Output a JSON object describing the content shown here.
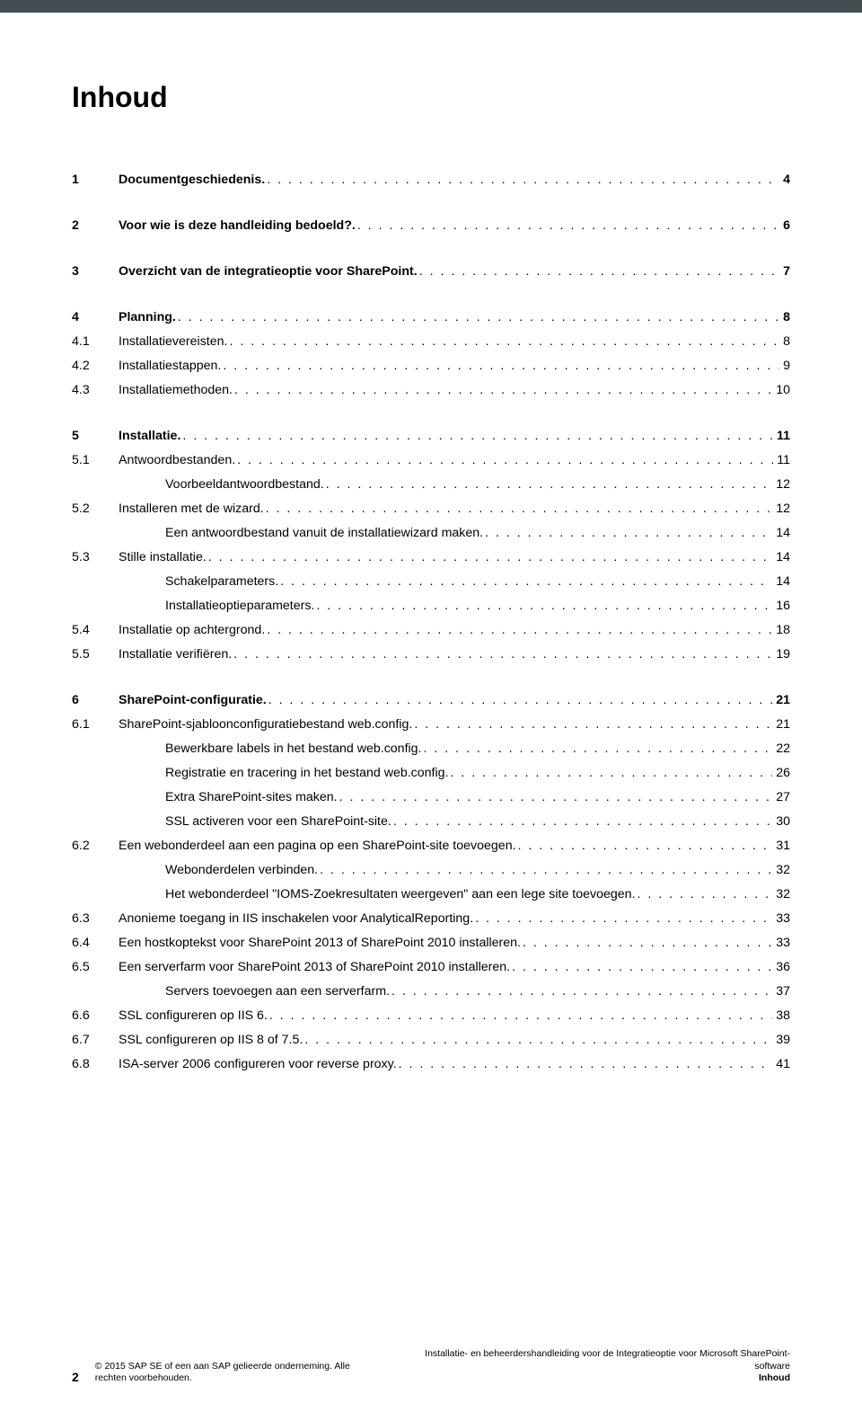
{
  "title": "Inhoud",
  "sections": [
    {
      "items": [
        {
          "num": "1",
          "label": "Documentgeschiedenis.",
          "page": "4",
          "bold": true
        }
      ]
    },
    {
      "items": [
        {
          "num": "2",
          "label": "Voor wie is deze handleiding bedoeld?.",
          "page": "6",
          "bold": true
        }
      ]
    },
    {
      "items": [
        {
          "num": "3",
          "label": "Overzicht van de integratieoptie voor SharePoint.",
          "page": "7",
          "bold": true
        }
      ]
    },
    {
      "items": [
        {
          "num": "4",
          "label": "Planning.",
          "page": "8",
          "bold": true
        },
        {
          "num": "4.1",
          "label": "Installatievereisten.",
          "page": "8"
        },
        {
          "num": "4.2",
          "label": "Installatiestappen.",
          "page": "9"
        },
        {
          "num": "4.3",
          "label": "Installatiemethoden.",
          "page": "10"
        }
      ]
    },
    {
      "items": [
        {
          "num": "5",
          "label": "Installatie.",
          "page": "11",
          "bold": true
        },
        {
          "num": "5.1",
          "label": "Antwoordbestanden.",
          "page": "11"
        },
        {
          "num": "",
          "label": "Voorbeeldantwoordbestand.",
          "page": "12",
          "indent": true
        },
        {
          "num": "5.2",
          "label": "Installeren met de wizard.",
          "page": "12"
        },
        {
          "num": "",
          "label": "Een antwoordbestand vanuit de installatiewizard maken.",
          "page": "14",
          "indent": true
        },
        {
          "num": "5.3",
          "label": "Stille installatie.",
          "page": "14"
        },
        {
          "num": "",
          "label": "Schakelparameters.",
          "page": "14",
          "indent": true
        },
        {
          "num": "",
          "label": "Installatieoptieparameters.",
          "page": "16",
          "indent": true
        },
        {
          "num": "5.4",
          "label": "Installatie op achtergrond.",
          "page": "18"
        },
        {
          "num": "5.5",
          "label": "Installatie verifiëren.",
          "page": "19"
        }
      ]
    },
    {
      "items": [
        {
          "num": "6",
          "label": "SharePoint-configuratie.",
          "page": "21",
          "bold": true
        },
        {
          "num": "6.1",
          "label": "SharePoint-sjabloonconfiguratiebestand web.config.",
          "page": "21"
        },
        {
          "num": "",
          "label": "Bewerkbare labels in het bestand web.config.",
          "page": "22",
          "indent": true
        },
        {
          "num": "",
          "label": "Registratie en tracering in het bestand web.config.",
          "page": "26",
          "indent": true
        },
        {
          "num": "",
          "label": "Extra SharePoint-sites maken.",
          "page": "27",
          "indent": true
        },
        {
          "num": "",
          "label": "SSL activeren voor een SharePoint-site.",
          "page": "30",
          "indent": true
        },
        {
          "num": "6.2",
          "label": "Een webonderdeel aan een pagina op een SharePoint-site toevoegen.",
          "page": "31"
        },
        {
          "num": "",
          "label": "Webonderdelen verbinden.",
          "page": "32",
          "indent": true
        },
        {
          "num": "",
          "label": "Het webonderdeel \"IOMS-Zoekresultaten weergeven\" aan een lege site toevoegen.",
          "page": "32",
          "indent": true
        },
        {
          "num": "6.3",
          "label": "Anonieme toegang in IIS inschakelen voor AnalyticalReporting.",
          "page": "33"
        },
        {
          "num": "6.4",
          "label": "Een hostkoptekst voor SharePoint 2013 of SharePoint 2010 installeren.",
          "page": "33"
        },
        {
          "num": "6.5",
          "label": "Een serverfarm voor SharePoint 2013 of SharePoint 2010 installeren.",
          "page": "36"
        },
        {
          "num": "",
          "label": "Servers toevoegen aan een serverfarm.",
          "page": "37",
          "indent": true
        },
        {
          "num": "6.6",
          "label": "SSL configureren op IIS 6.",
          "page": "38"
        },
        {
          "num": "6.7",
          "label": "SSL configureren op IIS 8 of 7.5.",
          "page": "39"
        },
        {
          "num": "6.8",
          "label": "ISA-server 2006 configureren voor reverse proxy.",
          "page": "41"
        }
      ]
    }
  ],
  "footer": {
    "page_number": "2",
    "copyright_line1": "© 2015 SAP SE of een aan SAP gelieerde onderneming. Alle",
    "copyright_line2": "rechten voorbehouden.",
    "doc_title_line1": "Installatie- en beheerdershandleiding voor de Integratieoptie voor Microsoft SharePoint-",
    "doc_title_line2": "software",
    "section_label": "Inhoud"
  }
}
